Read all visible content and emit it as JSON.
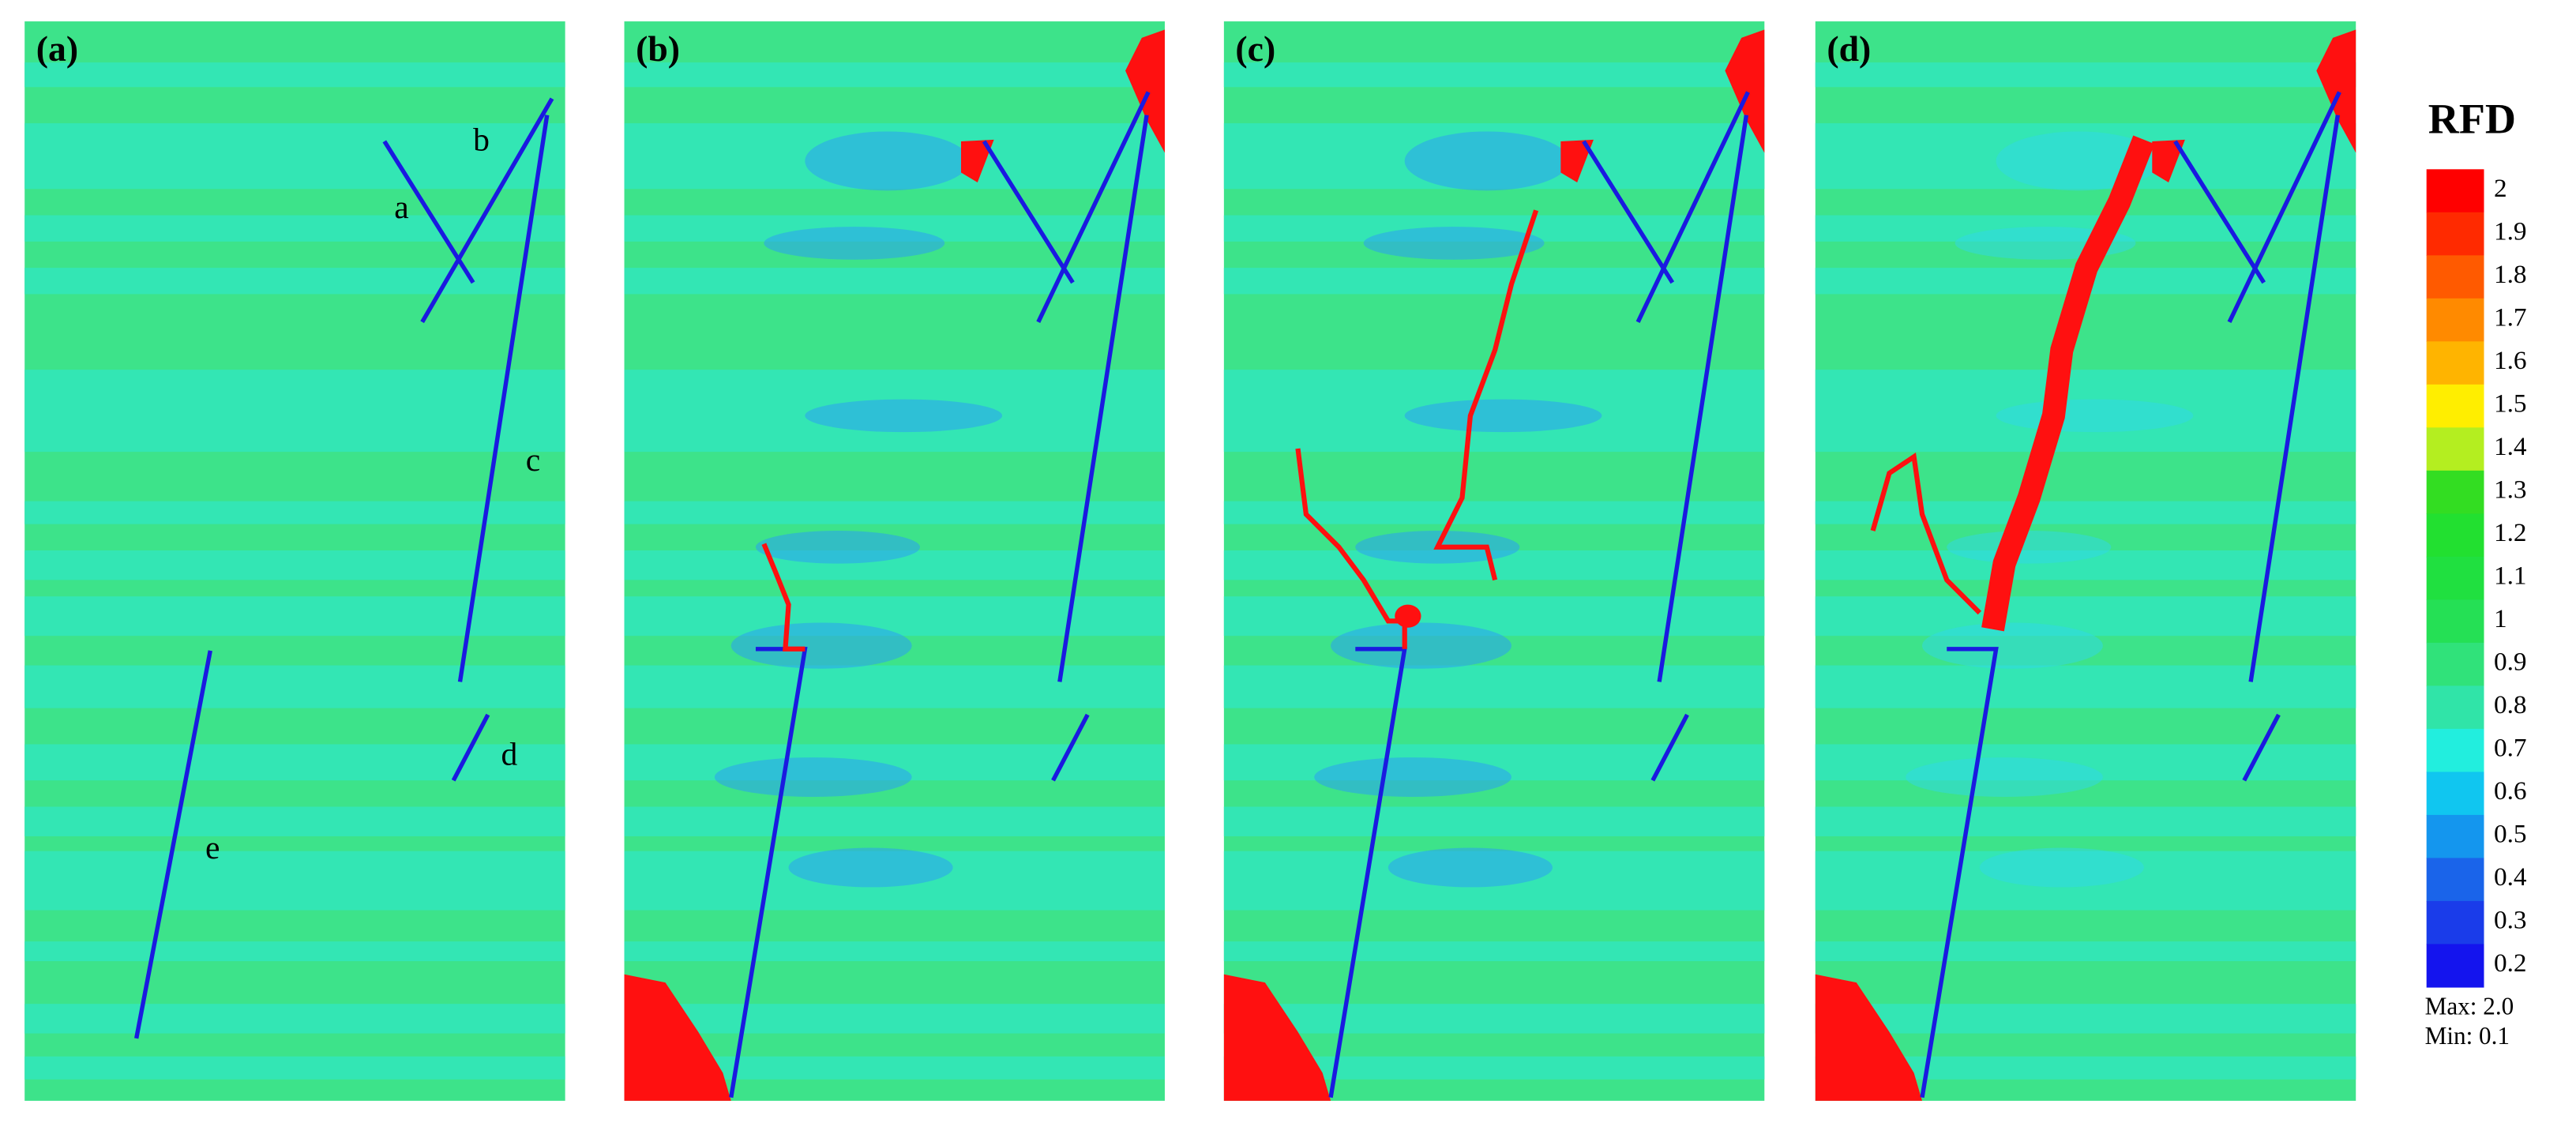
{
  "panels": [
    {
      "label": "(a)",
      "fracture_labels": [
        "a",
        "b",
        "c",
        "d",
        "e"
      ]
    },
    {
      "label": "(b)"
    },
    {
      "label": "(c)"
    },
    {
      "label": "(d)"
    }
  ],
  "colorbar": {
    "title": "RFD",
    "ticks": [
      2,
      1.9,
      1.8,
      1.7,
      1.6,
      1.5,
      1.4,
      1.3,
      1.2,
      1.1,
      1,
      0.9,
      0.8,
      0.7,
      0.6,
      0.5,
      0.4,
      0.3,
      0.2
    ],
    "colors": [
      "#ff0000",
      "#ff2a00",
      "#ff5a00",
      "#ff8a00",
      "#ffb400",
      "#ffee00",
      "#b4ee20",
      "#33dd22",
      "#22e030",
      "#20e040",
      "#25e055",
      "#30e27a",
      "#30e4a8",
      "#22eede",
      "#10c6f0",
      "#1496ee",
      "#1a64ea",
      "#1a3cea",
      "#1414ee"
    ],
    "max": "Max:  2.0",
    "min": "Min:  0.1"
  }
}
